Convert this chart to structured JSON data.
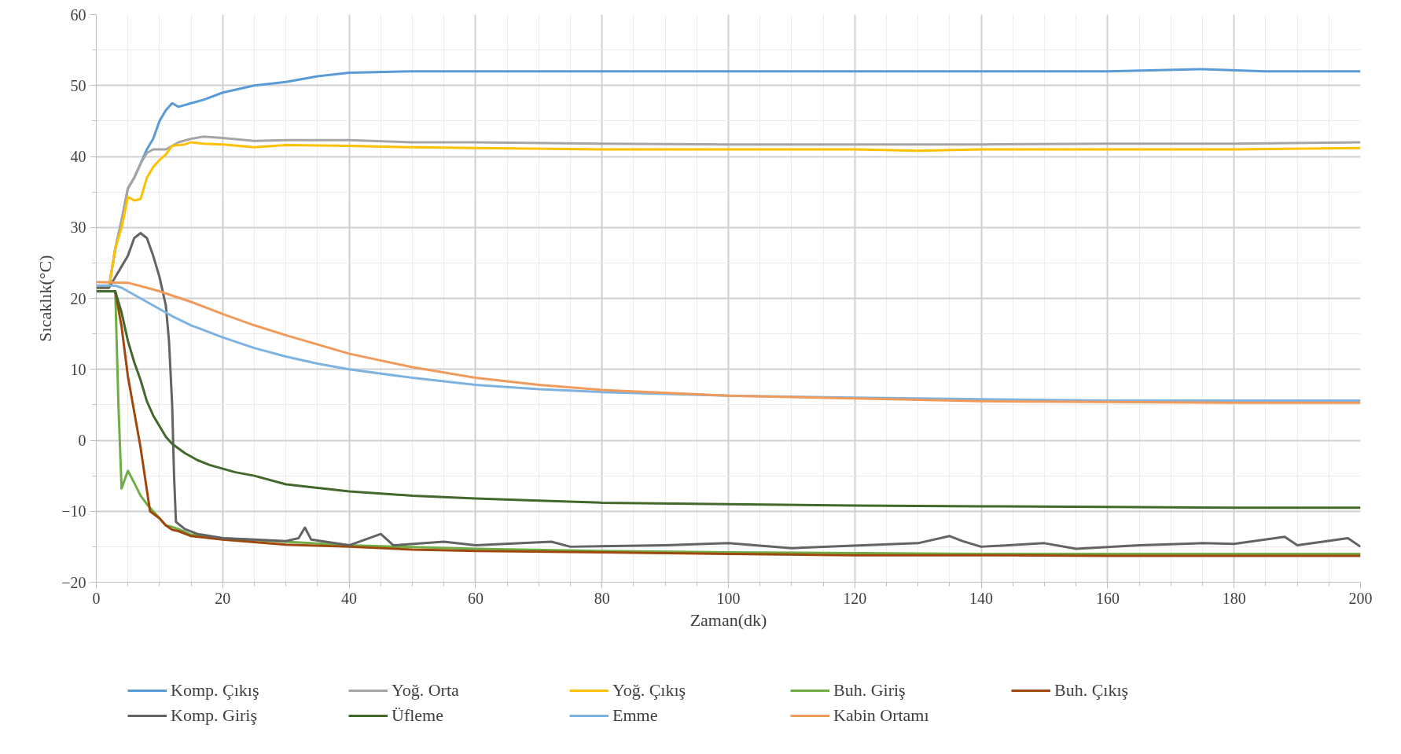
{
  "chart_data": {
    "type": "line",
    "xlabel": "Zaman(dk)",
    "ylabel": "Sıcaklık(°C)",
    "xlim": [
      0,
      200
    ],
    "ylim": [
      -20,
      60
    ],
    "xticks": [
      0,
      20,
      40,
      60,
      80,
      100,
      120,
      140,
      160,
      180,
      200
    ],
    "yticks": [
      -20,
      -10,
      0,
      10,
      20,
      30,
      40,
      50,
      60
    ],
    "grid": true,
    "legend": "bottom",
    "marker": "none",
    "line_style": "solid",
    "series": [
      {
        "name": "Komp. Çıkış",
        "color": "#5b9bd5",
        "x": [
          0,
          2,
          3,
          4,
          5,
          6,
          7,
          8,
          9,
          10,
          11,
          12,
          13,
          15,
          17,
          20,
          25,
          30,
          35,
          40,
          50,
          60,
          70,
          80,
          100,
          120,
          140,
          160,
          175,
          185,
          200
        ],
        "values": [
          21.5,
          21.5,
          27,
          31,
          35.5,
          37,
          39,
          41,
          42.5,
          45,
          46.5,
          47.5,
          47,
          47.5,
          48,
          49,
          50,
          50.5,
          51.3,
          51.8,
          52,
          52,
          52,
          52,
          52,
          52,
          52,
          52,
          52.3,
          52,
          52
        ]
      },
      {
        "name": "Yoğ. Orta",
        "color": "#a5a5a5",
        "x": [
          0,
          2,
          3,
          4,
          5,
          6,
          7,
          8,
          9,
          10,
          11,
          12,
          13,
          15,
          17,
          20,
          25,
          30,
          40,
          50,
          60,
          80,
          100,
          120,
          140,
          160,
          180,
          200
        ],
        "values": [
          21.5,
          21.5,
          27,
          31,
          35.5,
          37,
          39,
          40.5,
          41,
          41,
          41,
          41.5,
          42,
          42.5,
          42.8,
          42.6,
          42.2,
          42.3,
          42.3,
          42,
          42,
          41.8,
          41.7,
          41.7,
          41.7,
          41.8,
          41.8,
          42
        ]
      },
      {
        "name": "Yoğ. Çıkış",
        "color": "#ffc000",
        "x": [
          0,
          2,
          3,
          4,
          5,
          6,
          7,
          8,
          9,
          10,
          11,
          12,
          14,
          15,
          17,
          20,
          25,
          30,
          40,
          50,
          60,
          80,
          100,
          120,
          130,
          140,
          160,
          180,
          200
        ],
        "values": [
          21.5,
          21.5,
          27,
          30,
          34.3,
          33.8,
          34,
          37,
          38.5,
          39.5,
          40.3,
          41.5,
          41.7,
          42,
          41.8,
          41.7,
          41.3,
          41.6,
          41.5,
          41.3,
          41.2,
          41,
          41,
          41,
          40.8,
          41,
          41,
          41,
          41.2
        ]
      },
      {
        "name": "Buh. Giriş",
        "color": "#70ad47",
        "x": [
          0,
          2,
          3,
          3.5,
          4,
          5,
          6,
          7,
          8,
          9,
          10,
          11,
          12,
          13,
          15,
          20,
          30,
          40,
          60,
          80,
          100,
          140,
          200
        ],
        "values": [
          21,
          21,
          21,
          5,
          -6.8,
          -4.3,
          -6,
          -7.8,
          -9,
          -10,
          -11,
          -12,
          -12.2,
          -12.5,
          -13.3,
          -13.8,
          -14.3,
          -14.8,
          -15.3,
          -15.6,
          -15.8,
          -16,
          -16
        ]
      },
      {
        "name": "Buh. Çıkış",
        "color": "#9e480e",
        "x": [
          0,
          2,
          3,
          4,
          5,
          6,
          7,
          8,
          8.5,
          10,
          11,
          12,
          13,
          15,
          20,
          30,
          40,
          50,
          60,
          80,
          100,
          120,
          140,
          160,
          200
        ],
        "values": [
          21,
          21,
          21,
          16,
          9,
          4,
          -1,
          -7,
          -10,
          -11,
          -12,
          -12.6,
          -12.8,
          -13.5,
          -14,
          -14.7,
          -15,
          -15.4,
          -15.6,
          -15.8,
          -16,
          -16.2,
          -16.2,
          -16.3,
          -16.3
        ]
      },
      {
        "name": "Komp. Giriş",
        "color": "#636363",
        "x": [
          0,
          2,
          3,
          4,
          5,
          6,
          7,
          8,
          9,
          10,
          11,
          11.5,
          12,
          12.3,
          12.6,
          14,
          16,
          18,
          20,
          25,
          30,
          32,
          33,
          34,
          40,
          45,
          47,
          55,
          60,
          72,
          75,
          90,
          100,
          110,
          130,
          135,
          137,
          140,
          150,
          155,
          165,
          175,
          180,
          188,
          190,
          198,
          200
        ],
        "values": [
          21.5,
          21.5,
          23,
          24.5,
          26,
          28.5,
          29.2,
          28.5,
          26,
          23,
          19,
          14,
          5,
          -5,
          -11.5,
          -12.5,
          -13.2,
          -13.5,
          -13.8,
          -14,
          -14.2,
          -13.8,
          -12.3,
          -14,
          -14.8,
          -13.2,
          -14.8,
          -14.3,
          -14.8,
          -14.3,
          -15,
          -14.8,
          -14.5,
          -15.2,
          -14.5,
          -13.5,
          -14.2,
          -15,
          -14.5,
          -15.3,
          -14.8,
          -14.5,
          -14.6,
          -13.6,
          -14.8,
          -13.8,
          -15
        ]
      },
      {
        "name": "Üfleme",
        "color": "#43682b",
        "x": [
          0,
          2,
          3,
          4,
          5,
          6,
          7,
          8,
          9,
          10,
          11,
          12,
          14,
          16,
          18,
          20,
          22,
          25,
          30,
          35,
          40,
          45,
          50,
          60,
          70,
          80,
          100,
          120,
          140,
          160,
          180,
          200
        ],
        "values": [
          21,
          21,
          21,
          18,
          14,
          11,
          8.5,
          5.5,
          3.5,
          2,
          0.5,
          -0.5,
          -1.8,
          -2.8,
          -3.5,
          -4,
          -4.5,
          -5,
          -6.2,
          -6.7,
          -7.2,
          -7.5,
          -7.8,
          -8.2,
          -8.5,
          -8.8,
          -9,
          -9.2,
          -9.3,
          -9.4,
          -9.5,
          -9.5
        ]
      },
      {
        "name": "Emme",
        "color": "#7eb3e0",
        "x": [
          0,
          3,
          4,
          6,
          8,
          10,
          12,
          15,
          20,
          25,
          30,
          35,
          40,
          50,
          60,
          70,
          80,
          100,
          120,
          140,
          160,
          180,
          200
        ],
        "values": [
          21.8,
          21.8,
          21.5,
          20.5,
          19.5,
          18.5,
          17.5,
          16.2,
          14.5,
          13,
          11.8,
          10.8,
          10,
          8.8,
          7.8,
          7.2,
          6.8,
          6.3,
          6,
          5.8,
          5.6,
          5.6,
          5.6
        ]
      },
      {
        "name": "Kabin Ortamı",
        "color": "#f09a5c",
        "x": [
          0,
          5,
          8,
          10,
          15,
          20,
          25,
          30,
          35,
          40,
          50,
          60,
          70,
          80,
          100,
          120,
          140,
          160,
          180,
          200
        ],
        "values": [
          22.3,
          22.2,
          21.5,
          21,
          19.5,
          17.8,
          16.2,
          14.8,
          13.5,
          12.2,
          10.3,
          8.8,
          7.8,
          7.1,
          6.3,
          5.9,
          5.5,
          5.4,
          5.3,
          5.3
        ]
      }
    ]
  }
}
